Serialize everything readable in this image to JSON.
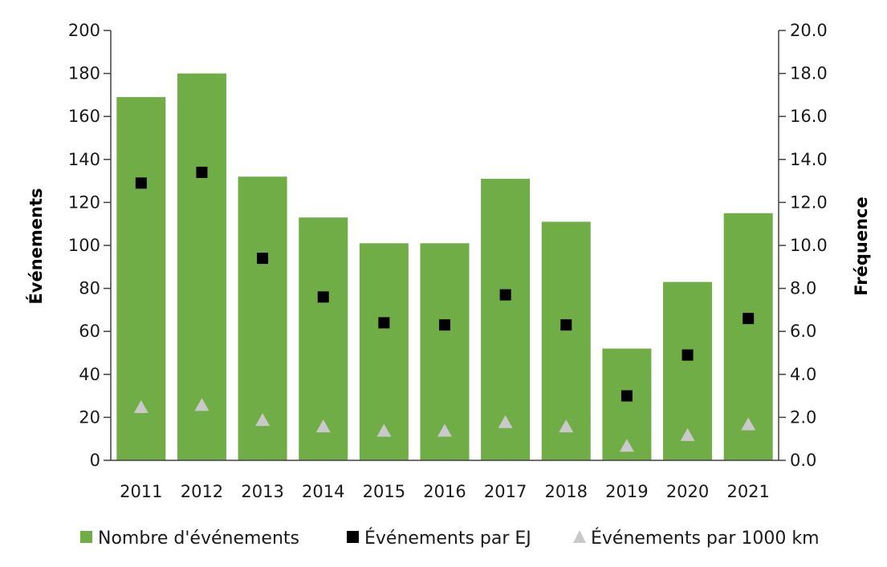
{
  "chart_data": {
    "type": "bar",
    "categories": [
      "2011",
      "2012",
      "2013",
      "2014",
      "2015",
      "2016",
      "2017",
      "2018",
      "2019",
      "2020",
      "2021"
    ],
    "series": [
      {
        "name": "Nombre d'événements",
        "kind": "bar",
        "axis": "left",
        "color": "#70ad47",
        "values": [
          169,
          180,
          132,
          113,
          101,
          101,
          131,
          111,
          52,
          83,
          115
        ]
      },
      {
        "name": "Événements par EJ",
        "kind": "marker-square",
        "axis": "right",
        "color": "#000000",
        "values": [
          12.9,
          13.4,
          9.4,
          7.6,
          6.4,
          6.3,
          7.7,
          6.3,
          3.0,
          4.9,
          6.6
        ]
      },
      {
        "name": "Événements par 1000 km",
        "kind": "marker-triangle",
        "axis": "right",
        "color": "#c9c9c9",
        "values": [
          2.5,
          2.6,
          1.9,
          1.6,
          1.4,
          1.4,
          1.8,
          1.6,
          0.7,
          1.2,
          1.7
        ]
      }
    ],
    "ylabel": "Événements",
    "y2label": "Fréquence",
    "ylim": [
      0,
      200
    ],
    "y2lim": [
      0,
      20
    ],
    "yticks": [
      "0",
      "20",
      "40",
      "60",
      "80",
      "100",
      "120",
      "140",
      "160",
      "180",
      "200"
    ],
    "y2ticks": [
      "0.0",
      "2.0",
      "4.0",
      "6.0",
      "8.0",
      "10.0",
      "12.0",
      "14.0",
      "16.0",
      "18.0",
      "20.0"
    ],
    "grid": false,
    "legend_position": "bottom"
  }
}
